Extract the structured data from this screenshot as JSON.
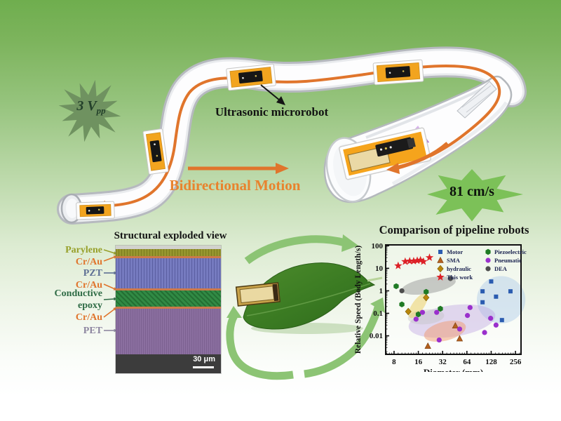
{
  "hero": {
    "voltage_main": "3 V",
    "voltage_sub": "pp",
    "microrobot_label": "Ultrasonic microrobot",
    "motion_label": "Bidirectional Motion",
    "speed_badge": "81 cm/s"
  },
  "sem": {
    "title": "Structural exploded view",
    "scale_bar": "30 μm",
    "layers": [
      {
        "label": "Parylene",
        "color": "#97a02a"
      },
      {
        "label": "Cr/Au",
        "color": "#e0742c"
      },
      {
        "label": "PZT",
        "color": "#5d6f94"
      },
      {
        "label": "Cr/Au",
        "color": "#e0742c"
      },
      {
        "label": "Conductive epoxy",
        "color": "#2e6b45"
      },
      {
        "label": "Cr/Au",
        "color": "#e0742c"
      },
      {
        "label": "PET",
        "color": "#8d86a0"
      }
    ]
  },
  "chart_data": {
    "type": "scatter",
    "title": "Comparison of pipeline robots",
    "xlabel": "Diameter (mm)",
    "ylabel": "Relative Speed (Body Length/s)",
    "x_scale": "log2",
    "y_scale": "log10",
    "xlim": [
      6.3,
      300
    ],
    "ylim": [
      0.0015,
      110
    ],
    "xticks": [
      8,
      16,
      32,
      64,
      128,
      256
    ],
    "yticks": [
      100,
      10,
      1,
      0.1,
      0.01
    ],
    "legend_columns": [
      [
        "Motor",
        "SMA",
        "hydraulic",
        "This work"
      ],
      [
        "Piezoelectric",
        "Pneumatic",
        "DEA"
      ]
    ],
    "series": [
      {
        "name": "Motor",
        "marker": "square",
        "color": "#2b5cb0",
        "points": [
          [
            100,
            0.95
          ],
          [
            100,
            0.31
          ],
          [
            128,
            2.6
          ],
          [
            147,
            0.55
          ],
          [
            174,
            0.05
          ],
          [
            222,
            0.95
          ]
        ]
      },
      {
        "name": "SMA",
        "marker": "triangle",
        "color": "#b4611f",
        "points": [
          [
            21,
            0.0035
          ],
          [
            46,
            0.028
          ],
          [
            52,
            0.0075
          ]
        ]
      },
      {
        "name": "hydraulic",
        "marker": "diamond",
        "color": "#b8860b",
        "points": [
          [
            12,
            0.12
          ],
          [
            20,
            0.5
          ]
        ]
      },
      {
        "name": "This work",
        "marker": "star",
        "color": "#dc2026",
        "points": [
          [
            9,
            13
          ],
          [
            11,
            20
          ],
          [
            12.5,
            21
          ],
          [
            14,
            21
          ],
          [
            15.5,
            22
          ],
          [
            17,
            23
          ],
          [
            18.5,
            20
          ],
          [
            22,
            30
          ]
        ]
      },
      {
        "name": "Piezoelectric",
        "marker": "hexagon",
        "color": "#1f7a24",
        "points": [
          [
            8.5,
            1.6
          ],
          [
            10,
            0.25
          ],
          [
            16,
            0.09
          ],
          [
            20,
            0.9
          ],
          [
            30,
            0.16
          ]
        ]
      },
      {
        "name": "Pneumatic",
        "marker": "circle",
        "color": "#9a30cc",
        "points": [
          [
            15,
            0.055
          ],
          [
            18,
            0.11
          ],
          [
            27,
            0.11
          ],
          [
            29,
            0.0065
          ],
          [
            52,
            0.02
          ],
          [
            65,
            0.08
          ],
          [
            70,
            0.18
          ],
          [
            106,
            0.014
          ],
          [
            126,
            0.06
          ],
          [
            147,
            0.03
          ]
        ]
      },
      {
        "name": "DEA",
        "marker": "circle",
        "color": "#4d4d4d",
        "points": [
          [
            10,
            1.0
          ],
          [
            40,
            3.5
          ]
        ]
      }
    ],
    "cluster_ellipses": [
      {
        "cx": 170,
        "cy": 0.4,
        "rx_oct": 1.0,
        "ry_dec": 1.05,
        "rot": 0,
        "color": "#a8c6e8",
        "opacity": 0.42
      },
      {
        "cx": 41.8,
        "cy": 0.045,
        "rx_oct": 1.8,
        "ry_dec": 0.7,
        "rot": -8,
        "color": "#b99ae0",
        "opacity": 0.38
      },
      {
        "cx": 34.2,
        "cy": 0.016,
        "rx_oct": 0.88,
        "ry_dec": 0.42,
        "rot": -14,
        "color": "#f09a70",
        "opacity": 0.5
      },
      {
        "cx": 19.9,
        "cy": 0.07,
        "rx_oct": 0.75,
        "ry_dec": 0.33,
        "rot": -5,
        "color": "#c0c0c0",
        "opacity": 0.4
      },
      {
        "cx": 15.9,
        "cy": 0.22,
        "rx_oct": 0.6,
        "ry_dec": 0.26,
        "rot": -55,
        "color": "#e8c84a",
        "opacity": 0.45
      },
      {
        "cx": 21.5,
        "cy": 1.7,
        "rx_oct": 1.13,
        "ry_dec": 0.35,
        "rot": -10,
        "color": "#8f8f8f",
        "opacity": 0.45
      }
    ]
  }
}
